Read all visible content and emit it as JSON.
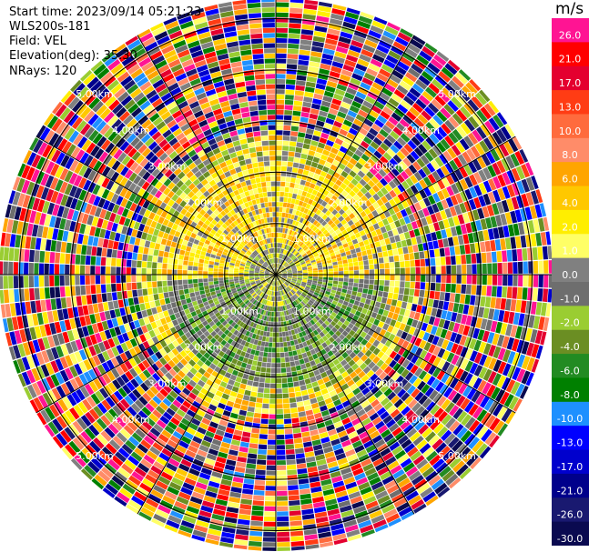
{
  "info": {
    "start_time_label": "Start time:",
    "start_time": "2023/09/14 05:21:23",
    "instrument": "WLS200s-181",
    "field_label": "Field:",
    "field": "VEL",
    "elevation_label": "Elevation(deg):",
    "elevation": "35.30",
    "nrays_label": "NRays:",
    "nrays": "120"
  },
  "chart_data": {
    "type": "heatmap",
    "projection": "polar-ppi",
    "field": "VEL",
    "units": "m/s",
    "nrays": 120,
    "range_rings_km": [
      1,
      2,
      3,
      4,
      5
    ],
    "range_ring_labels": [
      "1.00km",
      "2.00km",
      "3.00km",
      "4.00km",
      "5.00km"
    ],
    "spokes_deg": [
      0,
      30,
      60,
      90,
      120,
      150,
      180,
      210,
      240,
      270,
      300,
      330
    ],
    "colorbar": {
      "title": "m/s",
      "ticks": [
        "26.0",
        "21.0",
        "17.0",
        "13.0",
        "10.0",
        "8.0",
        "6.0",
        "4.0",
        "2.0",
        "1.0",
        "0.0",
        "-1.0",
        "-2.0",
        "-4.0",
        "-6.0",
        "-8.0",
        "-10.0",
        "-13.0",
        "-17.0",
        "-21.0",
        "-26.0",
        "-30.0"
      ],
      "colors": [
        "#ff1493",
        "#ff0000",
        "#e4002f",
        "#ff3c14",
        "#ff6b3d",
        "#ff8c69",
        "#ffa500",
        "#ffc800",
        "#ffee00",
        "#ffff66",
        "#808080",
        "#6e6e6e",
        "#9acd32",
        "#6b8e23",
        "#228b22",
        "#008000",
        "#1e90ff",
        "#0000ff",
        "#0000cd",
        "#00008b",
        "#191970",
        "#0a0a50"
      ]
    },
    "regions": [
      {
        "range_km": [
          0,
          1.2
        ],
        "description_values_ms": [
          0,
          2,
          -2
        ]
      },
      {
        "range_km": [
          1.2,
          2.4
        ],
        "values_ms": [
          2,
          1,
          0,
          -2,
          -4
        ]
      },
      {
        "range_km": [
          2.4,
          5.4
        ],
        "values_ms": "mixed noise across full scale"
      }
    ]
  }
}
